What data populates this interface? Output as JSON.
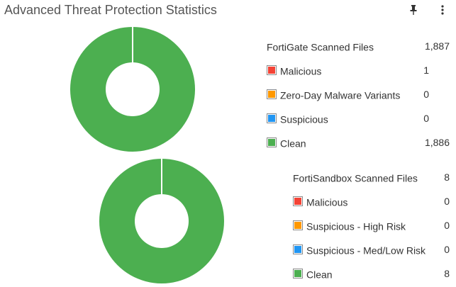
{
  "widget": {
    "title": "Advanced Threat Protection Statistics",
    "pin_icon": "pin-icon",
    "menu_icon": "vertical-ellipsis-icon"
  },
  "fortigate": {
    "header_label": "FortiGate Scanned Files",
    "header_count": "1,887",
    "items": [
      {
        "label": "Malicious",
        "count": "1",
        "color": "#f44336"
      },
      {
        "label": "Zero-Day Malware Variants",
        "count": "0",
        "color": "#ff9800"
      },
      {
        "label": "Suspicious",
        "count": "0",
        "color": "#2196f3"
      },
      {
        "label": "Clean",
        "count": "1,886",
        "color": "#4caf50"
      }
    ]
  },
  "fortisandbox": {
    "header_label": "FortiSandbox Scanned Files",
    "header_count": "8",
    "items": [
      {
        "label": "Malicious",
        "count": "0",
        "color": "#f44336"
      },
      {
        "label": "Suspicious - High Risk",
        "count": "0",
        "color": "#ff9800"
      },
      {
        "label": "Suspicious - Med/Low Risk",
        "count": "0",
        "color": "#2196f3"
      },
      {
        "label": "Clean",
        "count": "8",
        "color": "#4caf50"
      }
    ]
  },
  "chart_data": [
    {
      "type": "pie",
      "categories": [
        "Malicious",
        "Zero-Day Malware Variants",
        "Suspicious",
        "Clean"
      ],
      "values": [
        1,
        0,
        0,
        1886
      ],
      "colors": [
        "#f44336",
        "#ff9800",
        "#2196f3",
        "#4caf50"
      ]
    },
    {
      "type": "pie",
      "categories": [
        "Malicious",
        "Suspicious - High Risk",
        "Suspicious - Med/Low Risk",
        "Clean"
      ],
      "values": [
        0,
        0,
        0,
        8
      ],
      "colors": [
        "#f44336",
        "#ff9800",
        "#2196f3",
        "#4caf50"
      ]
    }
  ]
}
